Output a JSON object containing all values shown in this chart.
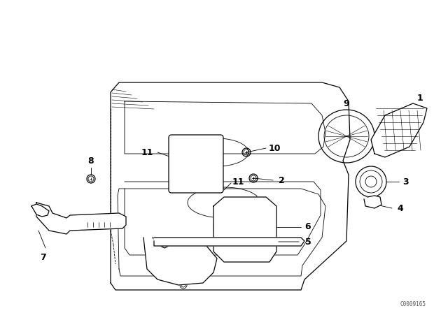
{
  "background_color": "#ffffff",
  "line_color": "#000000",
  "watermark": "C0009165",
  "fig_width": 6.4,
  "fig_height": 4.48,
  "dpi": 100
}
